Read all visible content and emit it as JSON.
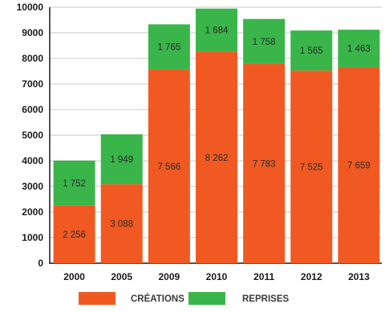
{
  "chart_data": {
    "type": "bar",
    "stacked": true,
    "categories": [
      "2000",
      "2005",
      "2009",
      "2010",
      "2011",
      "2012",
      "2013"
    ],
    "series": [
      {
        "name": "CRÉATIONS",
        "color": "#f05a22",
        "values": [
          2256,
          3088,
          7566,
          8262,
          7783,
          7525,
          7659
        ],
        "labels": [
          "2 256",
          "3 088",
          "7 566",
          "8 262",
          "7 783",
          "7 525",
          "7 659"
        ]
      },
      {
        "name": "REPRISES",
        "color": "#3ab54a",
        "values": [
          1752,
          1949,
          1765,
          1684,
          1758,
          1565,
          1463
        ],
        "labels": [
          "1 752",
          "1 949",
          "1 765",
          "1 684",
          "1 758",
          "1 565",
          "1 463"
        ]
      }
    ],
    "ylim": [
      0,
      10000
    ],
    "yticks": [
      "0",
      "1000",
      "2000",
      "3000",
      "4000",
      "5000",
      "6000",
      "7000",
      "8000",
      "9000",
      "10000"
    ],
    "grid": true,
    "legend_position": "bottom"
  }
}
